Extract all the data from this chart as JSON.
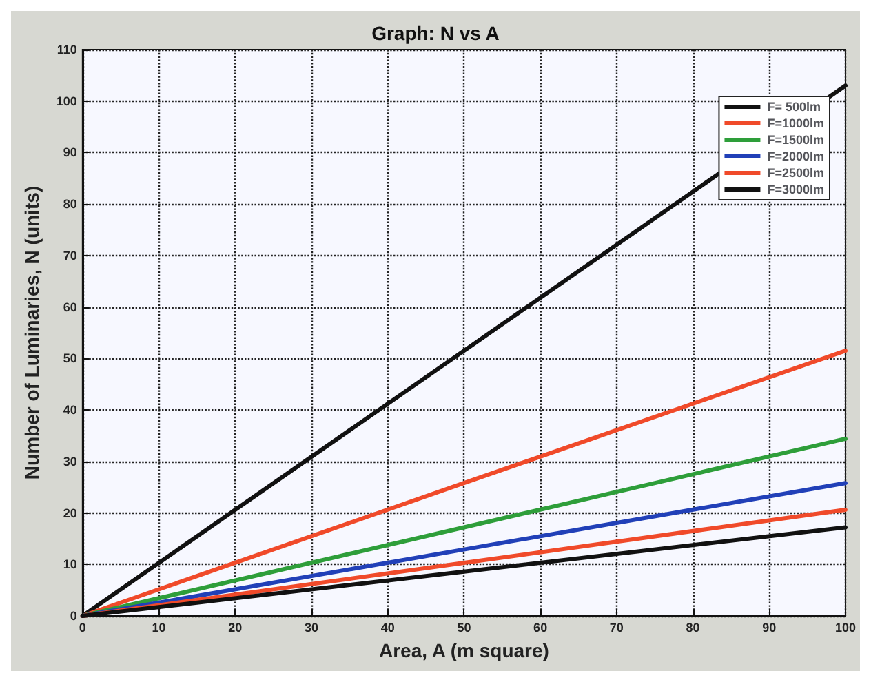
{
  "chart_data": {
    "type": "line",
    "title": "Graph: N vs A",
    "xlabel": "Area, A (m square)",
    "ylabel": "Number of Luminaries, N (units)",
    "x": [
      0,
      50,
      100
    ],
    "series": [
      {
        "name": "F= 500lm",
        "color": "#111111",
        "values": [
          0,
          51.5,
          103
        ]
      },
      {
        "name": "F=1000lm",
        "color": "#f04a2a",
        "values": [
          0,
          25.8,
          51.5
        ]
      },
      {
        "name": "F=1500lm",
        "color": "#2e9e3a",
        "values": [
          0,
          17.2,
          34.4
        ]
      },
      {
        "name": "F=2000lm",
        "color": "#2140b8",
        "values": [
          0,
          12.9,
          25.8
        ]
      },
      {
        "name": "F=2500lm",
        "color": "#f04a2a",
        "values": [
          0,
          10.3,
          20.6
        ]
      },
      {
        "name": "F=3000lm",
        "color": "#111111",
        "values": [
          0,
          8.6,
          17.2
        ]
      }
    ],
    "xlim": [
      0,
      100
    ],
    "xticks": [
      0,
      10,
      20,
      30,
      40,
      50,
      60,
      70,
      80,
      90,
      100
    ],
    "ylim": [
      0,
      110
    ],
    "yticks": [
      0,
      10,
      20,
      30,
      40,
      50,
      60,
      70,
      80,
      90,
      100,
      110
    ],
    "grid": true,
    "legend": "top right",
    "marker": "none",
    "line_style": "solid"
  }
}
